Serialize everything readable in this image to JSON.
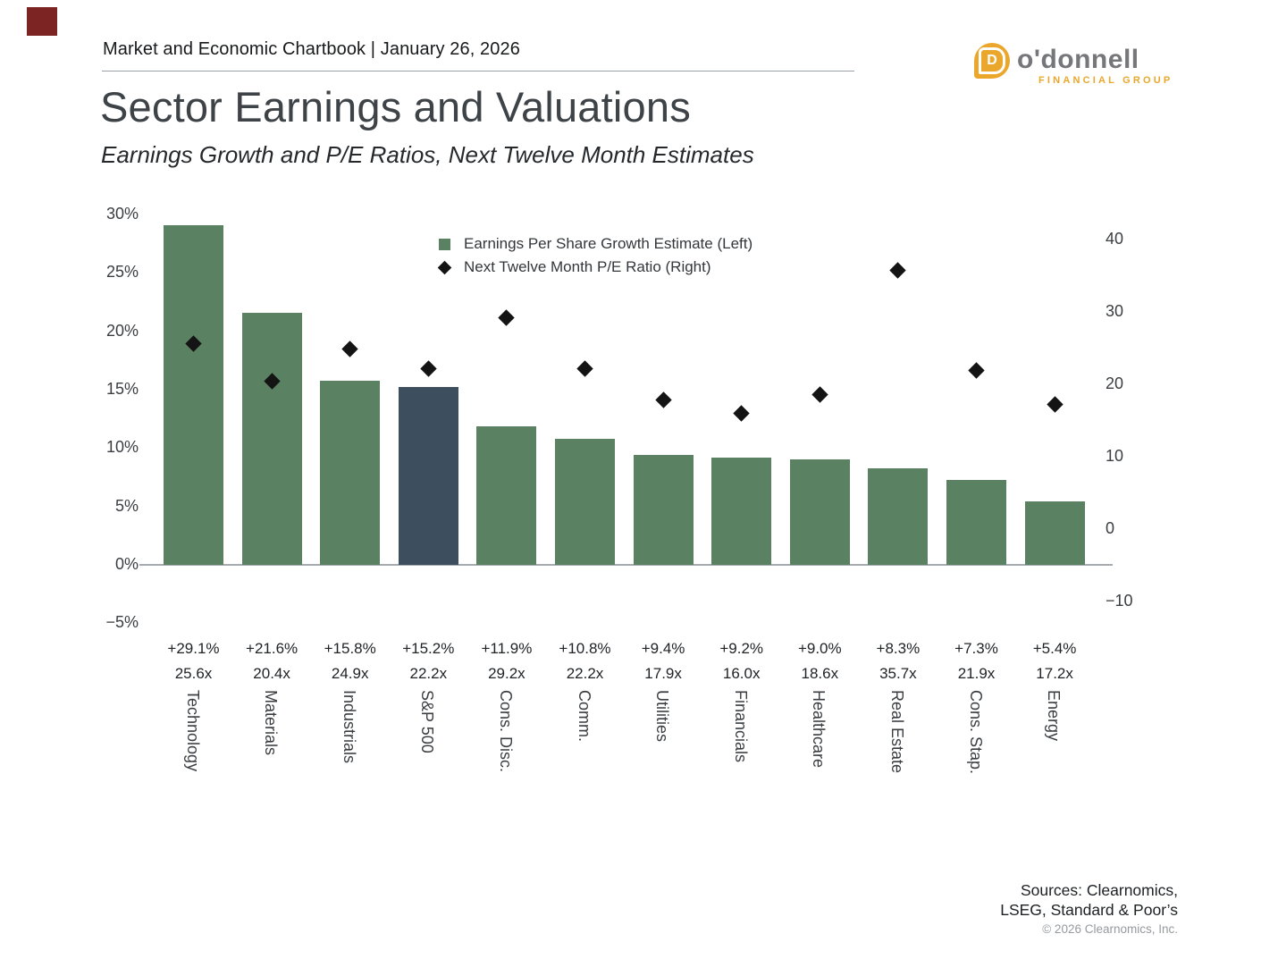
{
  "header": {
    "chartbook_title": "Market and Economic Chartbook | January 26, 2026"
  },
  "logo": {
    "monogram": "D",
    "wordmark": "o'donnell",
    "tagline": "FINANCIAL GROUP",
    "gold": "#EAA72B",
    "gray": "#76777A"
  },
  "corner_mark_color": "#7B2423",
  "page_title": "Sector Earnings and Valuations",
  "page_subtitle": "Earnings Growth and P/E Ratios, Next Twelve Month Estimates",
  "chart_data": {
    "type": "bar",
    "title": "Sector Earnings and Valuations",
    "subtitle": "Earnings Growth and P/E Ratios, Next Twelve Month Estimates",
    "grid": false,
    "legend_position": "top-center-inside",
    "categories": [
      "Technology",
      "Materials",
      "Industrials",
      "S&P 500",
      "Cons. Disc.",
      "Comm.",
      "Utilities",
      "Financials",
      "Healthcare",
      "Real Estate",
      "Cons. Stap.",
      "Energy"
    ],
    "series": [
      {
        "name": "Earnings Per Share Growth Estimate (Left)",
        "type": "bar",
        "axis": "left",
        "values": [
          29.1,
          21.6,
          15.8,
          15.2,
          11.9,
          10.8,
          9.4,
          9.2,
          9.0,
          8.3,
          7.3,
          5.4
        ],
        "labels": [
          "+29.1%",
          "+21.6%",
          "+15.8%",
          "+15.2%",
          "+11.9%",
          "+10.8%",
          "+9.4%",
          "+9.2%",
          "+9.0%",
          "+8.3%",
          "+7.3%",
          "+5.4%"
        ],
        "color": "#5B8163",
        "highlight_index": 3,
        "highlight_color": "#3D4F5E"
      },
      {
        "name": "Next Twelve Month P/E Ratio (Right)",
        "type": "scatter",
        "marker": "diamond",
        "axis": "right",
        "values": [
          25.6,
          20.4,
          24.9,
          22.2,
          29.2,
          22.2,
          17.9,
          16.0,
          18.6,
          35.7,
          21.9,
          17.2
        ],
        "labels": [
          "25.6x",
          "20.4x",
          "24.9x",
          "22.2x",
          "29.2x",
          "22.2x",
          "17.9x",
          "16.0x",
          "18.6x",
          "35.7x",
          "21.9x",
          "17.2x"
        ],
        "color": "#141414"
      }
    ],
    "left_axis": {
      "range": [
        -5,
        30
      ],
      "ticks": [
        {
          "label": "30%",
          "value": 30
        },
        {
          "label": "25%",
          "value": 25
        },
        {
          "label": "20%",
          "value": 20
        },
        {
          "label": "15%",
          "value": 15
        },
        {
          "label": "10%",
          "value": 10
        },
        {
          "label": "5%",
          "value": 5
        },
        {
          "label": "0%",
          "value": 0
        },
        {
          "label": "−5%",
          "value": -5
        }
      ]
    },
    "right_axis": {
      "range": [
        -10,
        40
      ],
      "ticks": [
        {
          "label": "40",
          "value": 40
        },
        {
          "label": "30",
          "value": 30
        },
        {
          "label": "20",
          "value": 20
        },
        {
          "label": "10",
          "value": 10
        },
        {
          "label": "0",
          "value": 0
        },
        {
          "label": "−10",
          "value": -10
        }
      ]
    },
    "legend": [
      {
        "marker": "square",
        "label": "Earnings Per Share Growth Estimate (Left)"
      },
      {
        "marker": "diamond",
        "label": "Next Twelve Month P/E Ratio (Right)"
      }
    ]
  },
  "footer": {
    "sources_line1": "Sources: Clearnomics,",
    "sources_line2": "LSEG, Standard & Poor’s",
    "copyright": "© 2026 Clearnomics, Inc."
  }
}
